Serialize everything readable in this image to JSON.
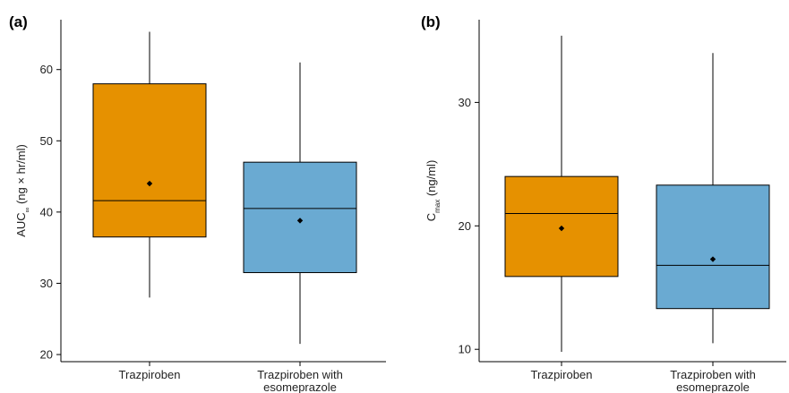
{
  "colors": {
    "orange": "#E69100",
    "blue": "#6AAAD2",
    "axis": "#000000"
  },
  "chart_data": [
    {
      "panel_label": "(a)",
      "type": "box",
      "ylabel": {
        "main": "AUC",
        "sub": "∞",
        "rest": " (ng × hr/ml)"
      },
      "ylim": [
        19,
        67
      ],
      "yticks": [
        "20",
        "30",
        "40",
        "50",
        "60"
      ],
      "ytick_values": [
        20,
        30,
        40,
        50,
        60
      ],
      "categories": [
        "Trazpiroben",
        "Trazpiroben with\nesomeprazole"
      ],
      "series": [
        {
          "category": "Trazpiroben",
          "color": "orange",
          "whisker_low": 28,
          "q1": 36.5,
          "median": 41.6,
          "q3": 58,
          "whisker_high": 65.3,
          "mean": 44
        },
        {
          "category": "Trazpiroben with esomeprazole",
          "color": "blue",
          "whisker_low": 21.5,
          "q1": 31.5,
          "median": 40.5,
          "q3": 47,
          "whisker_high": 61,
          "mean": 38.8
        }
      ]
    },
    {
      "panel_label": "(b)",
      "type": "box",
      "ylabel": {
        "main": "C",
        "sub": "max",
        "rest": " (ng/ml)"
      },
      "ylim": [
        9,
        36.7
      ],
      "yticks": [
        "10",
        "20",
        "30"
      ],
      "ytick_values": [
        10,
        20,
        30
      ],
      "categories": [
        "Trazpiroben",
        "Trazpiroben with\nesomeprazole"
      ],
      "series": [
        {
          "category": "Trazpiroben",
          "color": "orange",
          "whisker_low": 9.8,
          "q1": 15.9,
          "median": 21,
          "q3": 24,
          "whisker_high": 35.4,
          "mean": 19.8
        },
        {
          "category": "Trazpiroben with esomeprazole",
          "color": "blue",
          "whisker_low": 10.5,
          "q1": 13.3,
          "median": 16.8,
          "q3": 23.3,
          "whisker_high": 34,
          "mean": 17.3
        }
      ]
    }
  ]
}
